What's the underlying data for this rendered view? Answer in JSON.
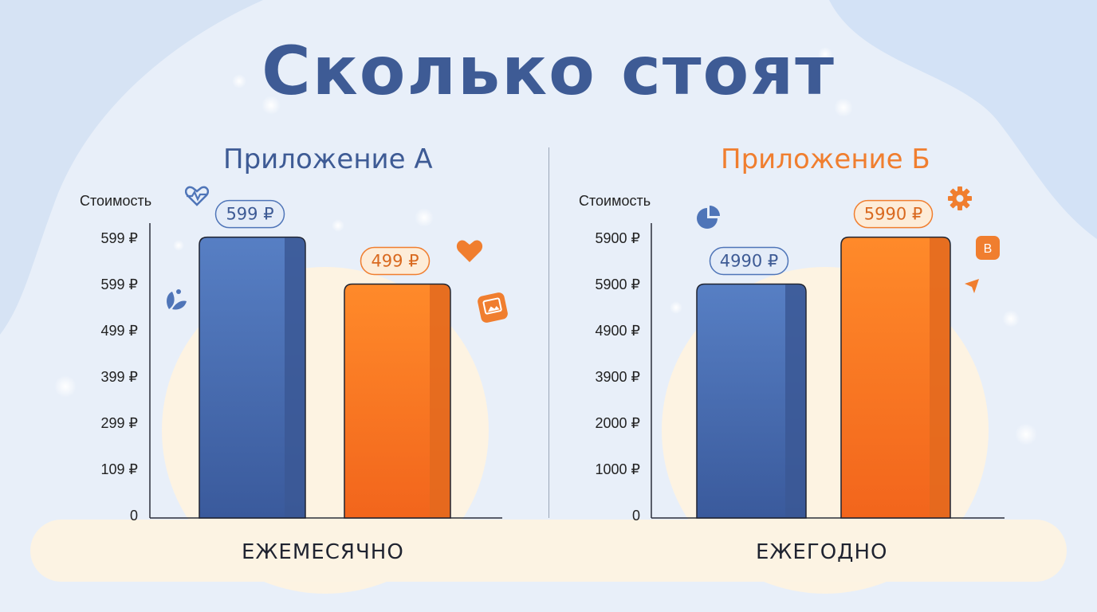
{
  "page": {
    "title": "Сколько стоят"
  },
  "colors": {
    "blue": "#4f75b8",
    "orange": "#f57f25",
    "title": "#3e5b95"
  },
  "chart_data": [
    {
      "type": "bar",
      "title": "Приложение А",
      "ylabel": "Стоимость",
      "category": "ЕЖЕМЕСЯЧНО",
      "yticks": [
        "0",
        "109 ₽",
        "299 ₽",
        "399 ₽",
        "499 ₽",
        "599 ₽",
        "599 ₽"
      ],
      "series": [
        {
          "values": [
            599
          ],
          "label": "599 ₽",
          "color": "blue"
        },
        {
          "values": [
            499
          ],
          "label": "499 ₽",
          "color": "orange"
        }
      ]
    },
    {
      "type": "bar",
      "title": "Приложение Б",
      "ylabel": "Стоимость",
      "category": "ЕЖЕГОДНО",
      "yticks": [
        "0",
        "1000 ₽",
        "2000 ₽",
        "3900 ₽",
        "4900 ₽",
        "5900 ₽",
        "5900 ₽"
      ],
      "series": [
        {
          "values": [
            4990
          ],
          "label": "4990 ₽",
          "color": "blue"
        },
        {
          "values": [
            5990
          ],
          "label": "5990 ₽",
          "color": "orange"
        }
      ]
    }
  ],
  "icons": [
    "heartbeat-icon",
    "leaf-icon",
    "heart-icon",
    "photo-card-icon",
    "pie-chart-icon",
    "gear-icon",
    "badge-b-icon",
    "arrow-icon"
  ],
  "badge_letter": "B"
}
